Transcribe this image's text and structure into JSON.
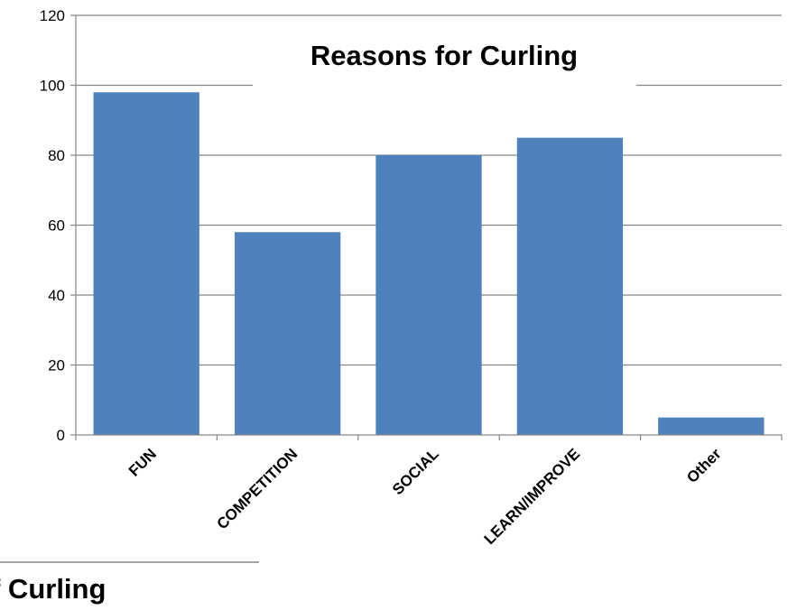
{
  "chart_data": {
    "type": "bar",
    "title": "Reasons for Curling",
    "categories": [
      "FUN",
      "COMPETITION",
      "SOCIAL",
      "LEARN/IMPROVE",
      "Other"
    ],
    "values": [
      98,
      58,
      80,
      85,
      5
    ],
    "xlabel": "",
    "ylabel": "",
    "ylim": [
      0,
      120
    ],
    "yticks": [
      0,
      20,
      40,
      60,
      80,
      100,
      120
    ],
    "ytick_labels": [
      "0",
      "20",
      "40",
      "60",
      "80",
      "100",
      "120"
    ],
    "grid": true,
    "legend": "none",
    "bar_color": "#4f81bd",
    "grid_color": "#868686",
    "axis_color": "#868686"
  },
  "fragment": {
    "title_partial": "f Curling"
  }
}
